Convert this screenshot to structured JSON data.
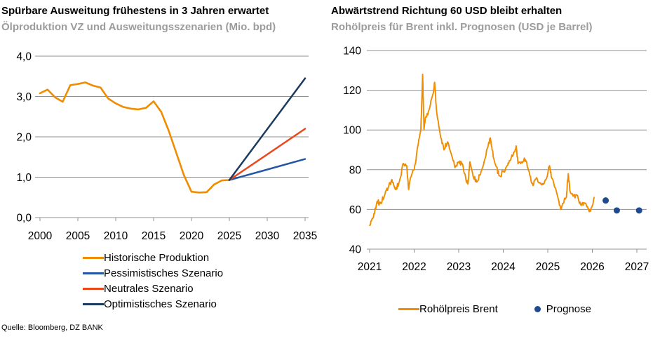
{
  "source": "Quelle: Bloomberg, DZ BANK",
  "colors": {
    "historical_orange": "#F08C00",
    "pessimistic_blue": "#2455A4",
    "neutral_red": "#E8481C",
    "optimistic_navy": "#1C3A5F",
    "forecast_dot_navy": "#1E4B8F",
    "grid_gray": "#909090",
    "subtitle_gray": "#9C9C9C"
  },
  "chart_data": [
    {
      "type": "line",
      "title": "Spürbare Ausweitung frühestens in 3 Jahren erwartet",
      "subtitle": "Ölproduktion VZ und Ausweitungsszenarien (Mio. bpd)",
      "xlabel": "",
      "ylabel": "",
      "xlim": [
        2000,
        2035.5
      ],
      "ylim": [
        0,
        4
      ],
      "grid": true,
      "legend_position": "bottom-stacked",
      "xticks": [
        2000,
        2005,
        2010,
        2015,
        2020,
        2025,
        2030,
        2035
      ],
      "yticks": [
        0,
        1,
        2,
        3,
        4
      ],
      "ytick_labels": [
        "0,0",
        "1,0",
        "2,0",
        "3,0",
        "4,0"
      ],
      "series": [
        {
          "name": "Historische Produktion",
          "color": "#F08C00",
          "x": [
            2000,
            2001,
            2002,
            2003,
            2004,
            2005,
            2006,
            2007,
            2008,
            2009,
            2010,
            2011,
            2012,
            2013,
            2014,
            2015,
            2016,
            2017,
            2018,
            2019,
            2020,
            2021,
            2022,
            2023,
            2024,
            2025
          ],
          "values": [
            3.08,
            3.17,
            2.98,
            2.87,
            3.28,
            3.31,
            3.35,
            3.27,
            3.22,
            2.95,
            2.83,
            2.74,
            2.7,
            2.68,
            2.72,
            2.88,
            2.62,
            2.15,
            1.6,
            1.05,
            0.64,
            0.62,
            0.63,
            0.82,
            0.92,
            0.93
          ]
        },
        {
          "name": "Pessimistisches Szenario",
          "color": "#2455A4",
          "x": [
            2025,
            2035
          ],
          "values": [
            0.93,
            1.45
          ]
        },
        {
          "name": "Neutrales Szenario",
          "color": "#E8481C",
          "x": [
            2025,
            2035
          ],
          "values": [
            0.93,
            2.2
          ]
        },
        {
          "name": "Optimistisches Szenario",
          "color": "#1C3A5F",
          "x": [
            2025,
            2035
          ],
          "values": [
            0.93,
            3.45
          ]
        }
      ]
    },
    {
      "type": "line",
      "title": "Abwärtstrend Richtung 60 USD bleibt erhalten",
      "subtitle": "Rohölpreis für Brent inkl. Prognosen (USD je Barrel)",
      "xlabel": "",
      "ylabel": "",
      "xlim": [
        2021,
        2027.3
      ],
      "ylim": [
        40,
        140
      ],
      "grid": true,
      "legend_position": "bottom-row",
      "xticks": [
        2021,
        2022,
        2023,
        2024,
        2025,
        2026,
        2027
      ],
      "yticks": [
        40,
        60,
        80,
        100,
        120,
        140
      ],
      "ytick_labels": [
        "40",
        "60",
        "80",
        "100",
        "120",
        "140"
      ],
      "series": [
        {
          "name": "Rohölpreis Brent",
          "color": "#F08C00",
          "noise_amplitude": 1.4,
          "x": [
            2021.0,
            2021.083,
            2021.167,
            2021.25,
            2021.333,
            2021.417,
            2021.5,
            2021.583,
            2021.667,
            2021.75,
            2021.833,
            2021.875,
            2021.917,
            2022.0,
            2022.083,
            2022.15,
            2022.19,
            2022.22,
            2022.25,
            2022.333,
            2022.42,
            2022.46,
            2022.5,
            2022.583,
            2022.667,
            2022.75,
            2022.833,
            2022.917,
            2023.0,
            2023.083,
            2023.17,
            2023.21,
            2023.25,
            2023.333,
            2023.417,
            2023.5,
            2023.583,
            2023.667,
            2023.71,
            2023.75,
            2023.833,
            2023.917,
            2024.0,
            2024.083,
            2024.167,
            2024.25,
            2024.29,
            2024.333,
            2024.417,
            2024.5,
            2024.583,
            2024.667,
            2024.75,
            2024.833,
            2024.917,
            2025.0,
            2025.04,
            2025.083,
            2025.167,
            2025.25,
            2025.29,
            2025.333,
            2025.417,
            2025.46,
            2025.5,
            2025.583,
            2025.667,
            2025.75,
            2025.833,
            2025.917,
            2025.96,
            2026.04
          ],
          "values": [
            52,
            56,
            64,
            63,
            67,
            71,
            75,
            70,
            74,
            83,
            82,
            70,
            76,
            80,
            92,
            100,
            128,
            100,
            106,
            110,
            118,
            124,
            110,
            98,
            90,
            94,
            88,
            81,
            84,
            83,
            74,
            73,
            84,
            76,
            74,
            79,
            85,
            93,
            96,
            90,
            82,
            77,
            79,
            82,
            85,
            89,
            92,
            83,
            84,
            85,
            79,
            72,
            76,
            73,
            73,
            78,
            82,
            76,
            71,
            64,
            60,
            63,
            66,
            78,
            69,
            67,
            67,
            62,
            63,
            60,
            59,
            66
          ]
        }
      ],
      "points": [
        {
          "name": "Prognose",
          "color": "#1E4B8F",
          "x": [
            2026.3,
            2026.55,
            2027.05
          ],
          "values": [
            64.5,
            59.5,
            59.5
          ]
        }
      ]
    }
  ]
}
